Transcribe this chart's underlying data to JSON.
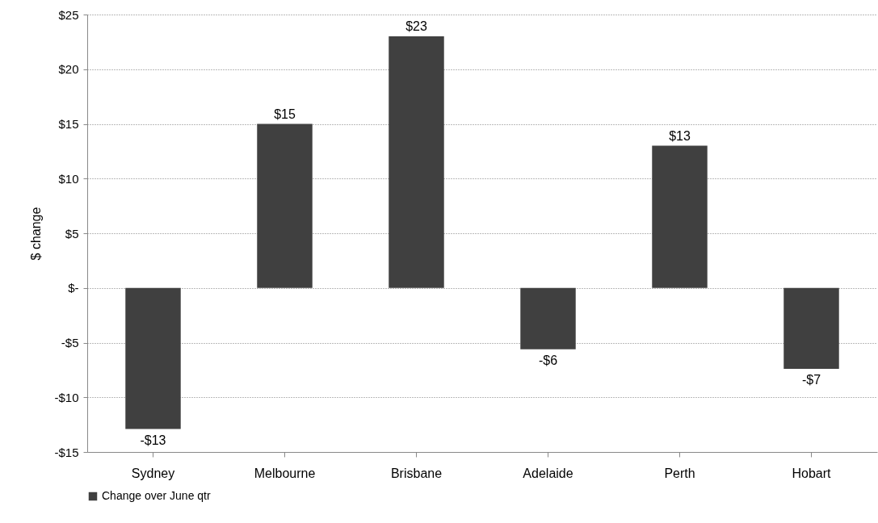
{
  "chart_data": {
    "type": "bar",
    "ylabel": "$ change",
    "categories": [
      "Sydney",
      "Melbourne",
      "Brisbane",
      "Adelaide",
      "Perth",
      "Hobart"
    ],
    "series": [
      {
        "name": "Change over  June qtr",
        "color": "#404040",
        "values": [
          -12.9,
          15,
          23,
          -5.6,
          13,
          -7.4
        ],
        "value_labels": [
          "-$13",
          "$15",
          "$23",
          "-$6",
          "$13",
          "-$7"
        ]
      }
    ],
    "ylim": [
      -15,
      25
    ],
    "yticks": [
      {
        "value": -15,
        "label": "-$15"
      },
      {
        "value": -10,
        "label": "-$10"
      },
      {
        "value": -5,
        "label": "-$5"
      },
      {
        "value": 0,
        "label": "$-"
      },
      {
        "value": 5,
        "label": "$5"
      },
      {
        "value": 10,
        "label": "$10"
      },
      {
        "value": 15,
        "label": "$15"
      },
      {
        "value": 20,
        "label": "$20"
      },
      {
        "value": 25,
        "label": "$25"
      }
    ],
    "grid": "y",
    "legend": "bottom"
  }
}
